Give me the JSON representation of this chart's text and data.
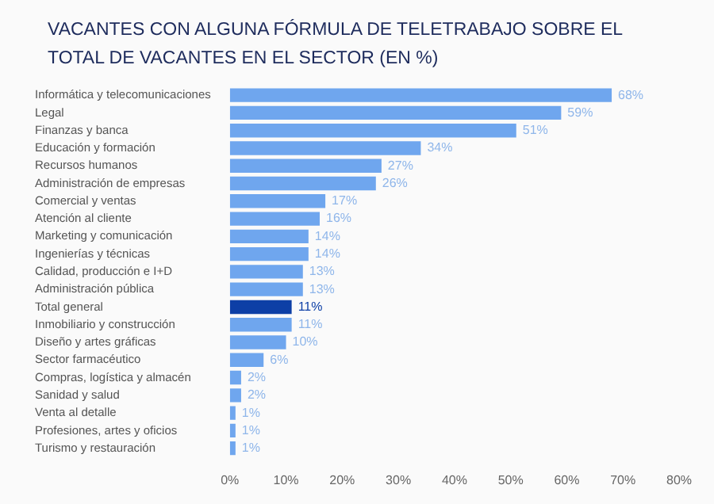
{
  "chart_data": {
    "type": "bar",
    "orientation": "horizontal",
    "title": "VACANTES CON ALGUNA FÓRMULA DE TELETRABAJO SOBRE EL TOTAL DE VACANTES EN EL SECTOR (EN %)",
    "categories": [
      "Informática y telecomunicaciones",
      "Legal",
      "Finanzas y banca",
      "Educación y formación",
      "Recursos humanos",
      "Administración de empresas",
      "Comercial y ventas",
      "Atención al cliente",
      "Marketing y comunicación",
      "Ingenierías y técnicas",
      "Calidad, producción e I+D",
      "Administración pública",
      "Total general",
      "Inmobiliario y construcción",
      "Diseño y artes gráficas",
      "Sector farmacéutico",
      "Compras, logística y almacén",
      "Sanidad y salud",
      "Venta al detalle",
      "Profesiones, artes y oficios",
      "Turismo y restauración"
    ],
    "values": [
      68,
      59,
      51,
      34,
      27,
      26,
      17,
      16,
      14,
      14,
      13,
      13,
      11,
      11,
      10,
      6,
      2,
      2,
      1,
      1,
      1
    ],
    "value_labels": [
      "68%",
      "59%",
      "51%",
      "34%",
      "27%",
      "26%",
      "17%",
      "16%",
      "14%",
      "14%",
      "13%",
      "13%",
      "11%",
      "11%",
      "10%",
      "6%",
      "2%",
      "2%",
      "1%",
      "1%",
      "1%"
    ],
    "colors": [
      "#6fa6ee",
      "#6fa6ee",
      "#6fa6ee",
      "#6fa6ee",
      "#6fa6ee",
      "#6fa6ee",
      "#6fa6ee",
      "#6fa6ee",
      "#6fa6ee",
      "#6fa6ee",
      "#6fa6ee",
      "#6fa6ee",
      "#0d3fa6",
      "#6fa6ee",
      "#6fa6ee",
      "#6fa6ee",
      "#6fa6ee",
      "#6fa6ee",
      "#6fa6ee",
      "#6fa6ee",
      "#6fa6ee"
    ],
    "xlim": [
      0,
      80
    ],
    "xticks": [
      {
        "value": 0,
        "label": "0%"
      },
      {
        "value": 10,
        "label": "10%"
      },
      {
        "value": 20,
        "label": "20%"
      },
      {
        "value": 30,
        "label": "30%"
      },
      {
        "value": 40,
        "label": "40%"
      },
      {
        "value": 50,
        "label": "50%"
      },
      {
        "value": 60,
        "label": "60%"
      },
      {
        "value": 70,
        "label": "70%"
      },
      {
        "value": 80,
        "label": "80%"
      }
    ],
    "grid": false,
    "legend": false
  }
}
